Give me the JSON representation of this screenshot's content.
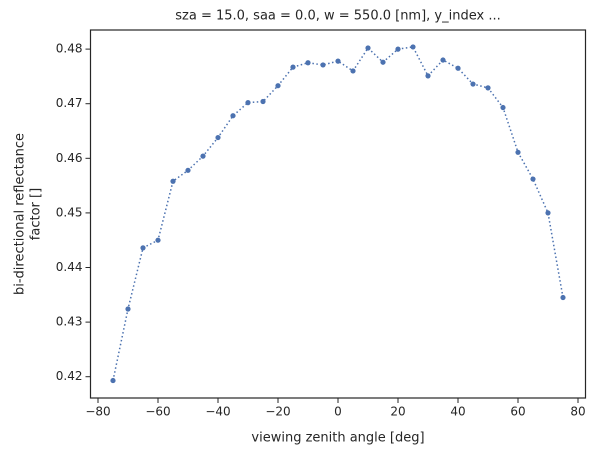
{
  "chart_data": {
    "type": "line",
    "title": "sza = 15.0, saa = 0.0, w = 550.0 [nm], y_index ...",
    "xlabel": "viewing zenith angle [deg]",
    "ylabel": [
      "bi-directional reflectance",
      "factor []"
    ],
    "x": [
      -75,
      -70,
      -65,
      -60,
      -55,
      -50,
      -45,
      -40,
      -35,
      -30,
      -25,
      -20,
      -15,
      -10,
      -5,
      0,
      5,
      10,
      15,
      20,
      25,
      30,
      35,
      40,
      45,
      50,
      55,
      60,
      65,
      70,
      75
    ],
    "series": [
      {
        "color": "#4c72b0",
        "values": [
          0.4193,
          0.4324,
          0.4436,
          0.445,
          0.4558,
          0.4578,
          0.4604,
          0.4638,
          0.4678,
          0.4702,
          0.4704,
          0.4733,
          0.4767,
          0.4775,
          0.4771,
          0.4778,
          0.476,
          0.4802,
          0.4776,
          0.48,
          0.4804,
          0.4751,
          0.478,
          0.4765,
          0.4736,
          0.4729,
          0.4693,
          0.4611,
          0.4562,
          0.45,
          0.4345
        ]
      }
    ],
    "xlim": [
      -82.5,
      82.5
    ],
    "ylim": [
      0.4161,
      0.4835
    ],
    "xticks": [
      {
        "value": -80,
        "label": "−80"
      },
      {
        "value": -60,
        "label": "−60"
      },
      {
        "value": -40,
        "label": "−40"
      },
      {
        "value": -20,
        "label": "−20"
      },
      0,
      20,
      40,
      60,
      80
    ],
    "yticks": [
      0.42,
      0.43,
      0.44,
      0.45,
      0.46,
      0.47,
      0.48
    ],
    "grid": false
  }
}
